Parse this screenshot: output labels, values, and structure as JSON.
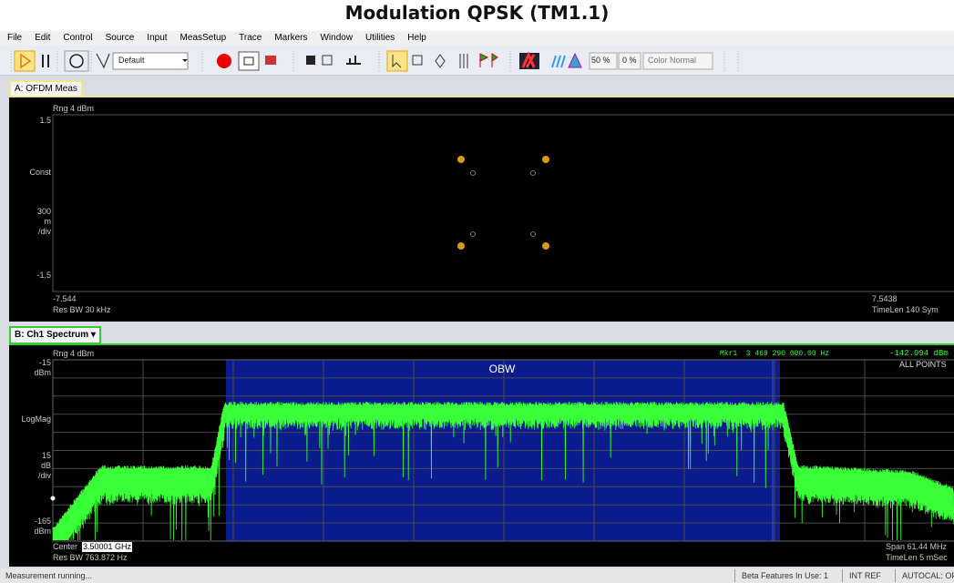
{
  "title": "Modulation QPSK (TM1.1)",
  "menu": [
    "File",
    "Edit",
    "Control",
    "Source",
    "Input",
    "MeasSetup",
    "Trace",
    "Markers",
    "Window",
    "Utilities",
    "Help"
  ],
  "toolbar": {
    "preset": "Default",
    "percent_a": "50 %",
    "percent_b": "0 %",
    "color_mode": "Color Normal"
  },
  "pane_a": {
    "tab": "A: OFDM Meas",
    "range": "Rng 4 dBm",
    "y_top": "1.5",
    "y_label": "Const",
    "scale": [
      "300",
      "m",
      "/div"
    ],
    "y_bottom": "-1.5",
    "x_start": "-7.544",
    "res_bw": "Res BW 30 kHz",
    "x_stop": "7.5438",
    "time_len": "TimeLen 140 Sym"
  },
  "pane_b": {
    "tab": "B: Ch1 Spectrum",
    "range": "Rng 4 dBm",
    "y_top": [
      "-15",
      "dBm"
    ],
    "y_label": "LogMag",
    "scale": [
      "15",
      "dB",
      "/div"
    ],
    "y_bottom": [
      "-165",
      "dBm"
    ],
    "center_label": "Center",
    "center": "3.50001 GHz",
    "res_bw": "Res BW 763.872 Hz",
    "span": "Span 61.44 MHz",
    "time_len": "TimeLen 5 mSec",
    "marker": "Mkr1  3 469 290 000.00 Hz",
    "marker_value": "-142.094 dBm",
    "detector": "ALL POINTS",
    "obw": "OBW"
  },
  "status": [
    "Measurement running...",
    "Beta Features In Use: 1",
    "INT REF",
    "AUTOCAL: OFF"
  ]
}
